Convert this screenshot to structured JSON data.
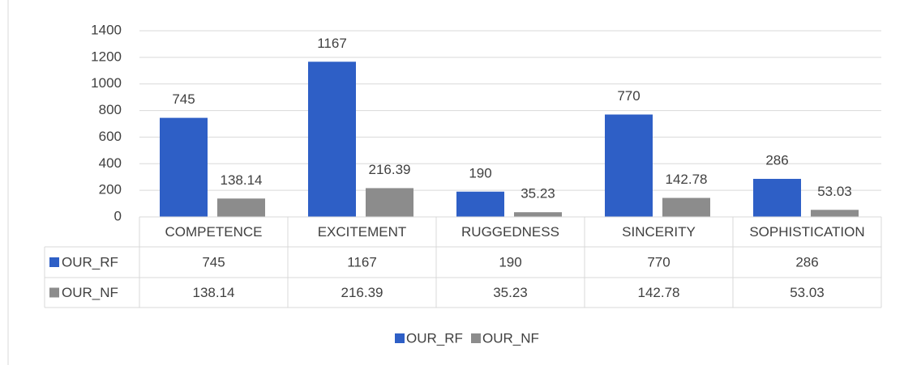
{
  "chart_data": {
    "type": "bar",
    "categories": [
      "COMPETENCE",
      "EXCITEMENT",
      "RUGGEDNESS",
      "SINCERITY",
      "SOPHISTICATION"
    ],
    "series": [
      {
        "name": "OUR_RF",
        "color": "#2e5fc6",
        "values": [
          745,
          1167,
          190,
          770,
          286
        ]
      },
      {
        "name": "OUR_NF",
        "color": "#8c8c8c",
        "values": [
          138.14,
          216.39,
          35.23,
          142.78,
          53.03
        ]
      }
    ],
    "ylim": [
      0,
      1400
    ],
    "yticks": [
      0,
      200,
      400,
      600,
      800,
      1000,
      1200,
      1400
    ],
    "grid": true,
    "data_table": true,
    "legend": "bottom"
  }
}
